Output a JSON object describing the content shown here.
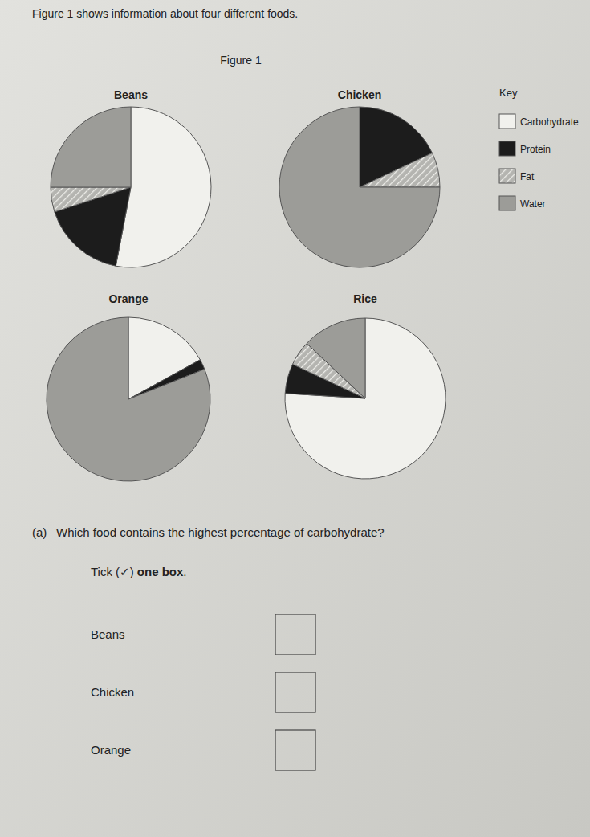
{
  "header": {
    "intro": "Figure 1 shows information about four different foods.",
    "figure_title": "Figure 1"
  },
  "chart_data": [
    {
      "type": "pie",
      "title": "Beans",
      "categories": [
        "Carbohydrate",
        "Protein",
        "Fat",
        "Water"
      ],
      "values": [
        53,
        17,
        5,
        25
      ],
      "colors": [
        "#f1f1ed",
        "#1c1c1c",
        "#b4b4b0",
        "#9c9c98"
      ]
    },
    {
      "type": "pie",
      "title": "Chicken",
      "categories": [
        "Carbohydrate",
        "Protein",
        "Fat",
        "Water"
      ],
      "values": [
        0,
        18,
        7,
        75
      ],
      "colors": [
        "#f1f1ed",
        "#1c1c1c",
        "#b4b4b0",
        "#9c9c98"
      ],
      "legend": "right"
    },
    {
      "type": "pie",
      "title": "Orange",
      "categories": [
        "Carbohydrate",
        "Protein",
        "Fat",
        "Water"
      ],
      "values": [
        17,
        2,
        0,
        81
      ],
      "colors": [
        "#f1f1ed",
        "#1c1c1c",
        "#b4b4b0",
        "#9c9c98"
      ]
    },
    {
      "type": "pie",
      "title": "Rice",
      "categories": [
        "Carbohydrate",
        "Protein",
        "Fat",
        "Water"
      ],
      "values": [
        76,
        6,
        5,
        13
      ],
      "colors": [
        "#f1f1ed",
        "#1c1c1c",
        "#b4b4b0",
        "#9c9c98"
      ]
    }
  ],
  "legend_title": "Key",
  "question": {
    "label": "(a)",
    "text": "Which food contains the highest percentage of carbohydrate?",
    "instruction": [
      "Tick (✓) ",
      "one box",
      "."
    ],
    "options": [
      "Beans",
      "Chicken",
      "Orange"
    ]
  }
}
